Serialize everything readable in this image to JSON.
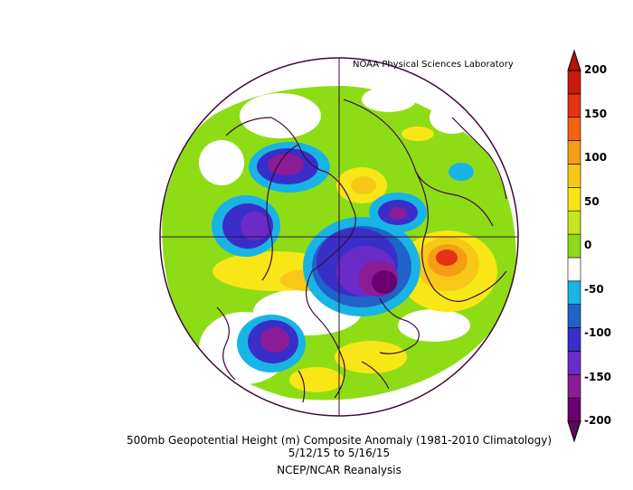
{
  "map": {
    "credit": "NOAA Physical Sciences Laboratory",
    "title": "500mb Geopotential Height (m) Composite Anomaly (1981-2010 Climatology)",
    "dates": "5/12/15   to 5/16/15",
    "source": "NCEP/NCAR Reanalysis",
    "projection": "north-polar-stereographic"
  },
  "colorbar": {
    "ticks": [
      "200",
      "150",
      "100",
      "50",
      "0",
      "-50",
      "-100",
      "-150",
      "-200"
    ],
    "colors": [
      "#6b0070",
      "#8a1d96",
      "#6a2bc8",
      "#3a2ec8",
      "#1f63c8",
      "#18b4e6",
      "#ffffff",
      "#8edc16",
      "#c8e61e",
      "#f8e616",
      "#f8c818",
      "#f59e14",
      "#f06414",
      "#e43214",
      "#c81a10"
    ],
    "over_color": "#b4140a",
    "under_color": "#5a0a5a"
  }
}
